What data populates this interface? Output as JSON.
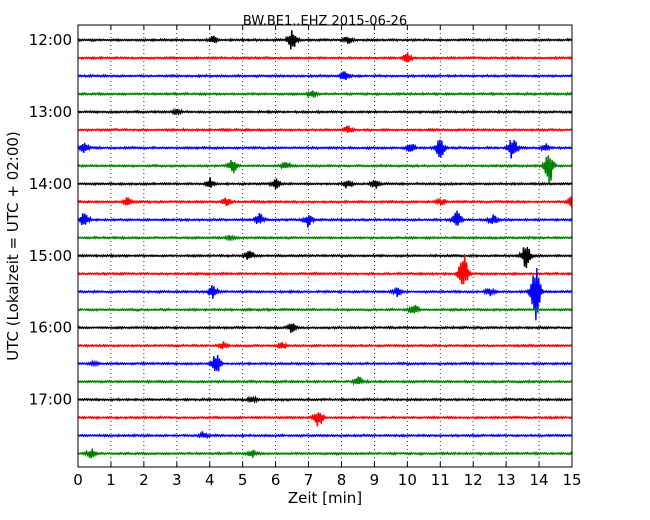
{
  "chart_data": {
    "type": "line",
    "title": "BW.BE1..EHZ 2015-06-26",
    "xlabel": "Zeit  [min]",
    "ylabel": "UTC (Lokalzeit = UTC + 02:00)",
    "xlim": [
      0,
      15
    ],
    "x_ticks": [
      "0",
      "1",
      "2",
      "3",
      "4",
      "5",
      "6",
      "7",
      "8",
      "9",
      "10",
      "11",
      "12",
      "13",
      "14",
      "15"
    ],
    "y_ticks": [
      "12:00",
      "13:00",
      "14:00",
      "15:00",
      "16:00",
      "17:00"
    ],
    "grid": "vertical dotted",
    "trace_colors": [
      "#000000",
      "#ff0000",
      "#0000ff",
      "#008000"
    ],
    "series": [
      {
        "start": "12:00",
        "events": [
          [
            4.1,
            0.3
          ],
          [
            6.5,
            1.0
          ],
          [
            8.2,
            0.3
          ]
        ]
      },
      {
        "start": "12:15",
        "events": [
          [
            10.0,
            0.4
          ]
        ]
      },
      {
        "start": "12:30",
        "events": [
          [
            8.1,
            0.5
          ]
        ]
      },
      {
        "start": "12:45",
        "events": [
          [
            7.1,
            0.3
          ]
        ]
      },
      {
        "start": "13:00",
        "events": [
          [
            3.0,
            0.2
          ]
        ]
      },
      {
        "start": "13:15",
        "events": [
          [
            8.2,
            0.3
          ]
        ]
      },
      {
        "start": "13:30",
        "events": [
          [
            0.2,
            0.5
          ],
          [
            10.1,
            0.5
          ],
          [
            11.0,
            0.9
          ],
          [
            13.2,
            1.0
          ],
          [
            14.2,
            0.4
          ]
        ]
      },
      {
        "start": "13:45",
        "events": [
          [
            4.7,
            0.6
          ],
          [
            6.3,
            0.3
          ],
          [
            14.3,
            1.6
          ]
        ]
      },
      {
        "start": "14:00",
        "events": [
          [
            4.0,
            0.5
          ],
          [
            6.0,
            0.4
          ],
          [
            8.2,
            0.4
          ],
          [
            9.0,
            0.4
          ]
        ]
      },
      {
        "start": "14:15",
        "events": [
          [
            1.5,
            0.3
          ],
          [
            4.5,
            0.3
          ],
          [
            11.0,
            0.3
          ],
          [
            15.0,
            0.5
          ]
        ]
      },
      {
        "start": "14:30",
        "events": [
          [
            0.2,
            0.7
          ],
          [
            5.5,
            0.5
          ],
          [
            7.0,
            0.6
          ],
          [
            11.5,
            0.9
          ],
          [
            12.6,
            0.4
          ]
        ]
      },
      {
        "start": "14:45",
        "events": [
          [
            4.6,
            0.2
          ]
        ]
      },
      {
        "start": "15:00",
        "events": [
          [
            5.2,
            0.4
          ],
          [
            13.6,
            1.2
          ]
        ]
      },
      {
        "start": "15:15",
        "events": [
          [
            11.7,
            1.8
          ]
        ]
      },
      {
        "start": "15:30",
        "events": [
          [
            4.1,
            0.6
          ],
          [
            9.7,
            0.4
          ],
          [
            12.5,
            0.3
          ],
          [
            13.9,
            2.8
          ]
        ]
      },
      {
        "start": "15:45",
        "events": [
          [
            10.2,
            0.5
          ]
        ]
      },
      {
        "start": "16:00",
        "events": [
          [
            6.5,
            0.4
          ]
        ]
      },
      {
        "start": "16:15",
        "events": [
          [
            4.4,
            0.3
          ],
          [
            6.2,
            0.3
          ]
        ]
      },
      {
        "start": "16:30",
        "events": [
          [
            0.5,
            0.2
          ],
          [
            4.2,
            1.0
          ]
        ]
      },
      {
        "start": "16:45",
        "events": [
          [
            8.5,
            0.4
          ]
        ]
      },
      {
        "start": "17:00",
        "events": [
          [
            5.3,
            0.3
          ]
        ]
      },
      {
        "start": "17:15",
        "events": [
          [
            7.3,
            0.8
          ]
        ]
      },
      {
        "start": "17:30",
        "events": [
          [
            3.8,
            0.3
          ]
        ]
      },
      {
        "start": "17:45",
        "events": [
          [
            0.4,
            0.4
          ],
          [
            5.3,
            0.3
          ]
        ]
      }
    ]
  }
}
